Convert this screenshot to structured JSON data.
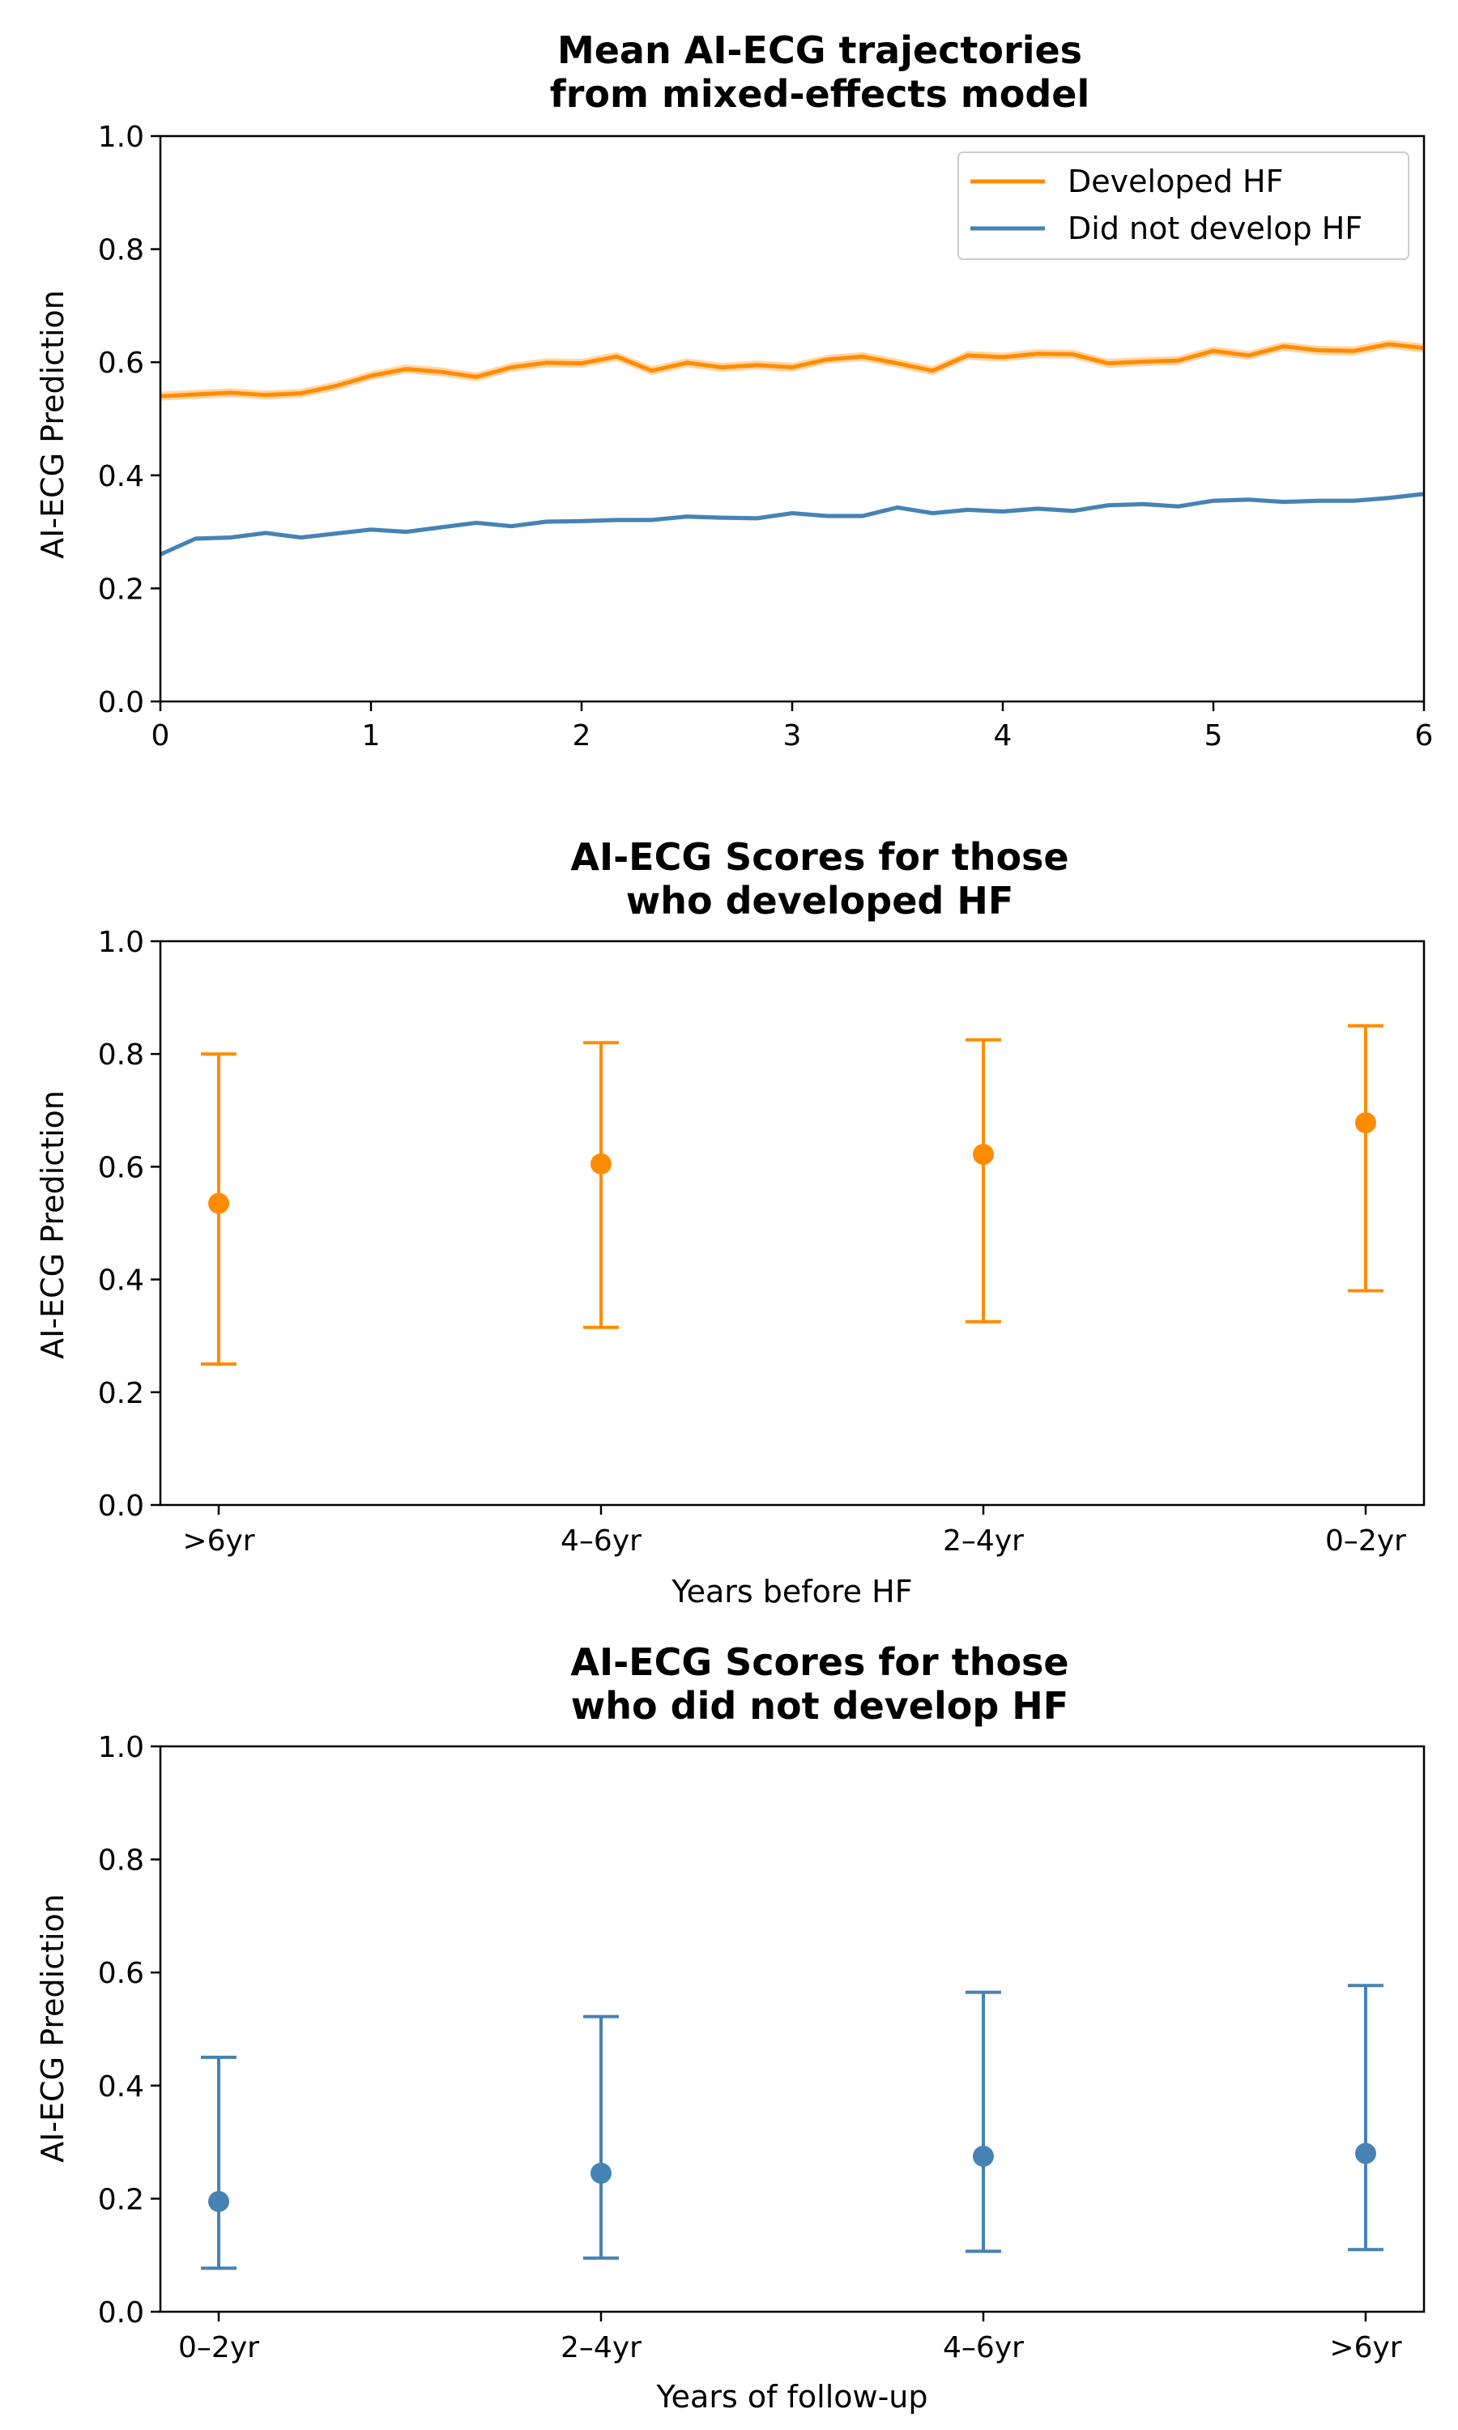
{
  "colors": {
    "developed": "#ff8c00",
    "not_developed": "#4682b4",
    "developed_band": "#ffd29e"
  },
  "chart_data": [
    {
      "type": "line",
      "title": [
        "Mean AI-ECG trajectories",
        "from mixed-effects model"
      ],
      "xlabel": "",
      "ylabel": "AI-ECG Prediction",
      "xlim": [
        0,
        6
      ],
      "ylim": [
        0,
        1
      ],
      "xticks": [
        "0",
        "1",
        "2",
        "3",
        "4",
        "5",
        "6"
      ],
      "yticks": [
        "0.0",
        "0.2",
        "0.4",
        "0.6",
        "0.8",
        "1.0"
      ],
      "legend": {
        "position": "top-right",
        "entries": [
          "Developed HF",
          "Did not develop HF"
        ]
      },
      "series": [
        {
          "name": "Developed HF",
          "x": [
            0,
            0.167,
            0.333,
            0.5,
            0.667,
            0.833,
            1.0,
            1.167,
            1.333,
            1.5,
            1.667,
            1.833,
            2.0,
            2.167,
            2.333,
            2.5,
            2.667,
            2.833,
            3.0,
            3.167,
            3.333,
            3.5,
            3.667,
            3.833,
            4.0,
            4.167,
            4.333,
            4.5,
            4.667,
            4.833,
            5.0,
            5.167,
            5.333,
            5.5,
            5.667,
            5.833,
            6.0
          ],
          "values": [
            0.54,
            0.543,
            0.546,
            0.542,
            0.545,
            0.558,
            0.576,
            0.588,
            0.583,
            0.574,
            0.591,
            0.599,
            0.598,
            0.61,
            0.585,
            0.599,
            0.591,
            0.595,
            0.591,
            0.605,
            0.61,
            0.598,
            0.585,
            0.612,
            0.609,
            0.615,
            0.614,
            0.598,
            0.601,
            0.603,
            0.62,
            0.612,
            0.628,
            0.621,
            0.62,
            0.632,
            0.625
          ],
          "band": 0.008
        },
        {
          "name": "Did not develop HF",
          "x": [
            0,
            0.167,
            0.333,
            0.5,
            0.667,
            0.833,
            1.0,
            1.167,
            1.333,
            1.5,
            1.667,
            1.833,
            2.0,
            2.167,
            2.333,
            2.5,
            2.667,
            2.833,
            3.0,
            3.167,
            3.333,
            3.5,
            3.667,
            3.833,
            4.0,
            4.167,
            4.333,
            4.5,
            4.667,
            4.833,
            5.0,
            5.167,
            5.333,
            5.5,
            5.667,
            5.833,
            6.0
          ],
          "values": [
            0.26,
            0.288,
            0.29,
            0.298,
            0.29,
            0.297,
            0.304,
            0.3,
            0.308,
            0.316,
            0.31,
            0.318,
            0.319,
            0.321,
            0.321,
            0.327,
            0.325,
            0.324,
            0.333,
            0.328,
            0.328,
            0.343,
            0.333,
            0.339,
            0.336,
            0.341,
            0.337,
            0.347,
            0.349,
            0.345,
            0.355,
            0.357,
            0.353,
            0.355,
            0.355,
            0.36,
            0.367
          ],
          "band": 0.004
        }
      ]
    },
    {
      "type": "errorbar",
      "title": [
        "AI-ECG Scores for those",
        "who developed HF"
      ],
      "xlabel": "Years before HF",
      "ylabel": "AI-ECG Prediction",
      "ylim": [
        0,
        1
      ],
      "yticks": [
        "0.0",
        "0.2",
        "0.4",
        "0.6",
        "0.8",
        "1.0"
      ],
      "categories": [
        ">6yr",
        "4–6yr",
        "2–4yr",
        "0–2yr"
      ],
      "values": [
        0.535,
        0.605,
        0.622,
        0.678
      ],
      "lower": [
        0.25,
        0.315,
        0.325,
        0.38
      ],
      "upper": [
        0.8,
        0.82,
        0.825,
        0.85
      ],
      "color_key": "developed"
    },
    {
      "type": "errorbar",
      "title": [
        "AI-ECG Scores for those",
        "who did not develop HF"
      ],
      "xlabel": "Years of follow-up",
      "ylabel": "AI-ECG Prediction",
      "ylim": [
        0,
        1
      ],
      "yticks": [
        "0.0",
        "0.2",
        "0.4",
        "0.6",
        "0.8",
        "1.0"
      ],
      "categories": [
        "0–2yr",
        "2–4yr",
        "4–6yr",
        ">6yr"
      ],
      "values": [
        0.195,
        0.245,
        0.275,
        0.28
      ],
      "lower": [
        0.077,
        0.095,
        0.107,
        0.11
      ],
      "upper": [
        0.45,
        0.522,
        0.565,
        0.577
      ],
      "color_key": "not_developed"
    }
  ]
}
